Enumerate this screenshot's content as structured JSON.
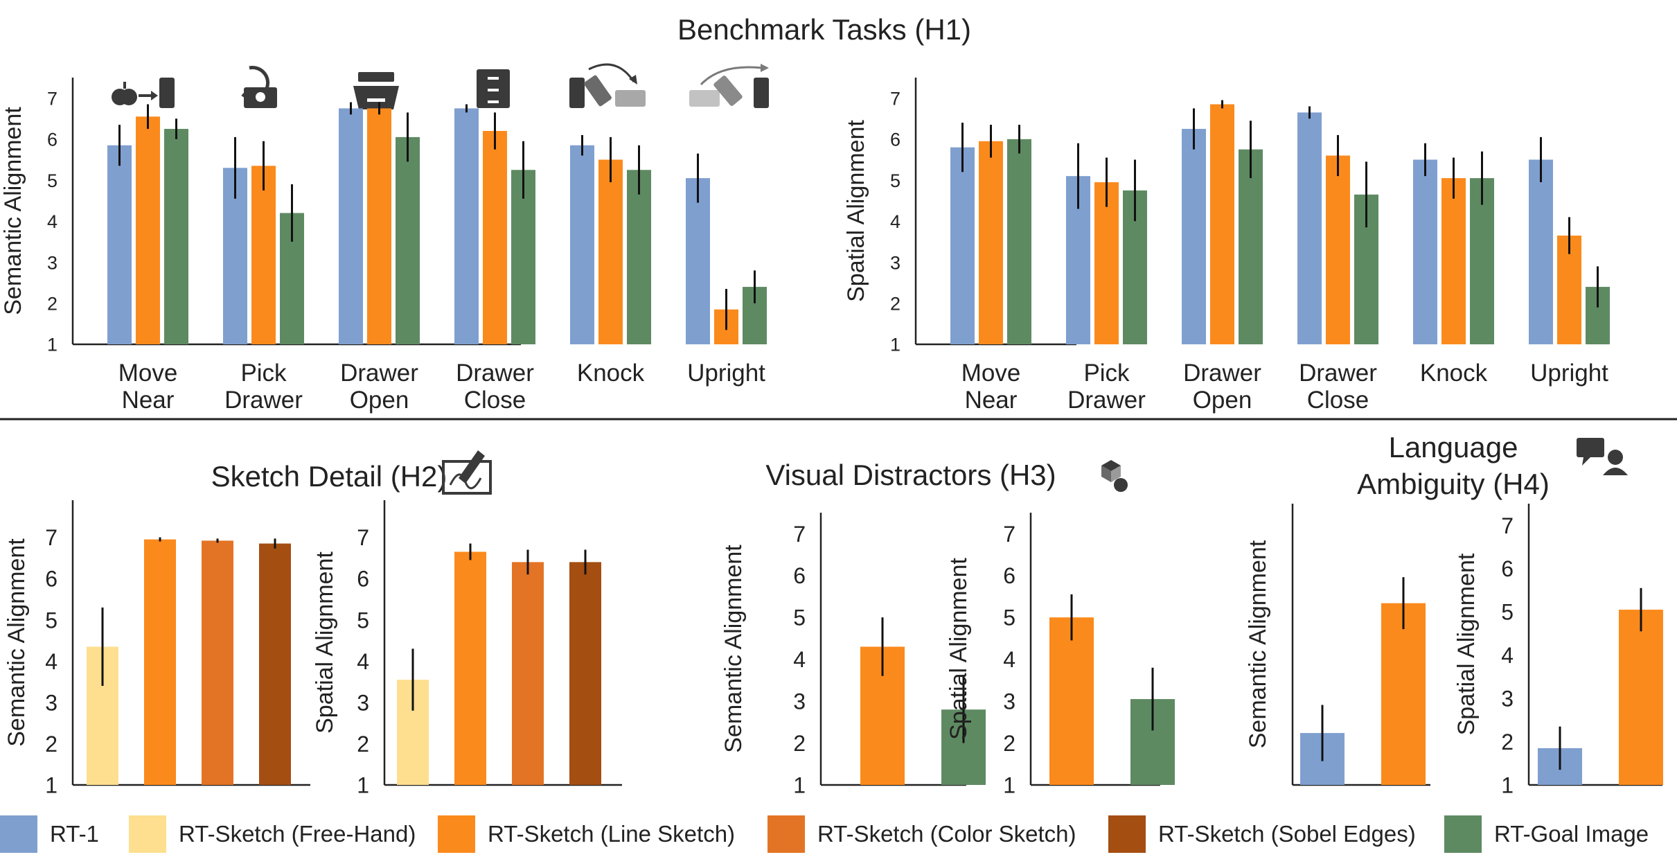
{
  "header": {
    "benchmark_title": "Benchmark Tasks (H1)"
  },
  "sections": {
    "h2_title": "Sketch Detail (H2)",
    "h3_title": "Visual Distractors (H3)",
    "h4_title_line1": "Language",
    "h4_title_line2": "Ambiguity (H4)"
  },
  "colors": {
    "rt1": "#7f9fcf",
    "freehand": "#fddf8f",
    "line": "#fb8a1c",
    "color": "#e37425",
    "sobel": "#a44e12",
    "goal": "#5e8a62",
    "axis": "#222222"
  },
  "icons": {
    "move_near": "apple-arrow-can-icon",
    "pick_drawer": "drawer-pick-icon",
    "drawer_open": "open-drawer-icon",
    "drawer_close": "closed-drawer-icon",
    "knock": "knock-over-can-icon",
    "upright": "upright-can-icon",
    "sketch": "sketch-pen-icon",
    "distractors": "distractor-objects-icon",
    "ambiguity": "speech-person-icon"
  },
  "legend": [
    {
      "key": "rt1",
      "label": "RT-1"
    },
    {
      "key": "freehand",
      "label": "RT-Sketch (Free-Hand)"
    },
    {
      "key": "line",
      "label": "RT-Sketch (Line Sketch)"
    },
    {
      "key": "color",
      "label": "RT-Sketch (Color Sketch)"
    },
    {
      "key": "sobel",
      "label": "RT-Sketch (Sobel Edges)"
    },
    {
      "key": "goal",
      "label": "RT-Goal Image"
    }
  ],
  "chart_data": [
    {
      "id": "h1-semantic",
      "type": "bar",
      "ylabel": "Semantic Alignment",
      "ylim": [
        1,
        7.5
      ],
      "yticks": [
        1,
        2,
        3,
        4,
        5,
        6,
        7
      ],
      "categories": [
        [
          "Move",
          "Near"
        ],
        [
          "Pick",
          "Drawer"
        ],
        [
          "Drawer",
          "Open"
        ],
        [
          "Drawer",
          "Close"
        ],
        [
          "Knock"
        ],
        [
          "Upright"
        ]
      ],
      "series": [
        {
          "key": "rt1",
          "values": [
            5.85,
            5.3,
            6.75,
            6.75,
            5.85,
            5.05
          ],
          "err": [
            0.5,
            0.75,
            0.15,
            0.1,
            0.25,
            0.6
          ]
        },
        {
          "key": "line",
          "values": [
            6.55,
            5.35,
            6.75,
            6.2,
            5.5,
            1.85
          ],
          "err": [
            0.3,
            0.6,
            0.15,
            0.45,
            0.55,
            0.5
          ]
        },
        {
          "key": "goal",
          "values": [
            6.25,
            4.2,
            6.05,
            5.25,
            5.25,
            2.4
          ],
          "err": [
            0.25,
            0.7,
            0.6,
            0.7,
            0.6,
            0.4
          ]
        }
      ]
    },
    {
      "id": "h1-spatial",
      "type": "bar",
      "ylabel": "Spatial Alignment",
      "ylim": [
        1,
        7.5
      ],
      "yticks": [
        1,
        2,
        3,
        4,
        5,
        6,
        7
      ],
      "categories": [
        [
          "Move",
          "Near"
        ],
        [
          "Pick",
          "Drawer"
        ],
        [
          "Drawer",
          "Open"
        ],
        [
          "Drawer",
          "Close"
        ],
        [
          "Knock"
        ],
        [
          "Upright"
        ]
      ],
      "series": [
        {
          "key": "rt1",
          "values": [
            5.8,
            5.1,
            6.25,
            6.65,
            5.5,
            5.5
          ],
          "err": [
            0.6,
            0.8,
            0.5,
            0.15,
            0.4,
            0.55
          ]
        },
        {
          "key": "line",
          "values": [
            5.95,
            4.95,
            6.85,
            5.6,
            5.05,
            3.65
          ],
          "err": [
            0.4,
            0.6,
            0.1,
            0.5,
            0.5,
            0.45
          ]
        },
        {
          "key": "goal",
          "values": [
            6.0,
            4.75,
            5.75,
            4.65,
            5.05,
            2.4
          ],
          "err": [
            0.35,
            0.75,
            0.7,
            0.8,
            0.65,
            0.5
          ]
        }
      ]
    },
    {
      "id": "h2-semantic",
      "type": "bar",
      "ylabel": "Semantic Alignment",
      "ylim": [
        1,
        7.9
      ],
      "yticks": [
        1,
        2,
        3,
        4,
        5,
        6,
        7
      ],
      "series": [
        {
          "key": "freehand",
          "value": 4.35,
          "err": 0.95
        },
        {
          "key": "line",
          "value": 6.95,
          "err": 0.05
        },
        {
          "key": "color",
          "value": 6.92,
          "err": 0.05
        },
        {
          "key": "sobel",
          "value": 6.85,
          "err": 0.12
        }
      ]
    },
    {
      "id": "h2-spatial",
      "type": "bar",
      "ylabel": "Spatial Alignment",
      "ylim": [
        1,
        7.9
      ],
      "yticks": [
        1,
        2,
        3,
        4,
        5,
        6,
        7
      ],
      "series": [
        {
          "key": "freehand",
          "value": 3.55,
          "err": 0.75
        },
        {
          "key": "line",
          "value": 6.65,
          "err": 0.2
        },
        {
          "key": "color",
          "value": 6.4,
          "err": 0.3
        },
        {
          "key": "sobel",
          "value": 6.4,
          "err": 0.3
        }
      ]
    },
    {
      "id": "h3-semantic",
      "type": "bar",
      "ylabel": "Semantic Alignment",
      "ylim": [
        1,
        7.5
      ],
      "yticks": [
        1,
        2,
        3,
        4,
        5,
        6,
        7
      ],
      "series": [
        {
          "key": "line",
          "value": 4.3,
          "err": 0.7
        },
        {
          "key": "goal",
          "value": 2.8,
          "err": 0.8
        }
      ]
    },
    {
      "id": "h3-spatial",
      "type": "bar",
      "ylabel": "Spatial Alignment",
      "ylim": [
        1,
        7.5
      ],
      "yticks": [
        1,
        2,
        3,
        4,
        5,
        6,
        7
      ],
      "series": [
        {
          "key": "line",
          "value": 5.0,
          "err": 0.55
        },
        {
          "key": "goal",
          "value": 3.05,
          "err": 0.75
        }
      ]
    },
    {
      "id": "h4-semantic",
      "type": "bar",
      "ylabel": "Semantic Alignment",
      "ylim": [
        1,
        7.5
      ],
      "yticks": [],
      "series": [
        {
          "key": "rt1",
          "value": 2.2,
          "err": 0.65
        },
        {
          "key": "line",
          "value": 5.2,
          "err": 0.6
        }
      ]
    },
    {
      "id": "h4-spatial",
      "type": "bar",
      "ylabel": "Spatial Alignment",
      "ylim": [
        1,
        7.5
      ],
      "yticks": [
        1,
        2,
        3,
        4,
        5,
        6,
        7
      ],
      "series": [
        {
          "key": "rt1",
          "value": 1.85,
          "err": 0.5
        },
        {
          "key": "line",
          "value": 5.05,
          "err": 0.5
        }
      ]
    }
  ]
}
